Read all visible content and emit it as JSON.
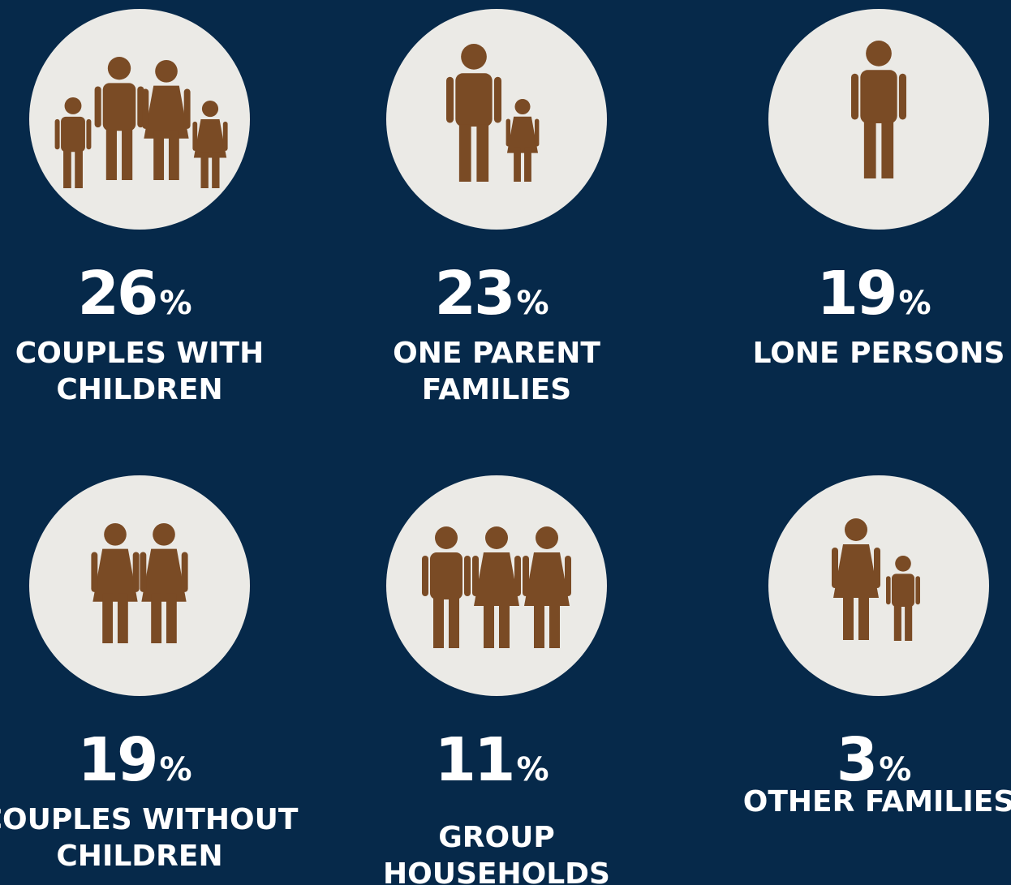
{
  "items": [
    {
      "number": "26",
      "unit": "%",
      "label": [
        "COUPLES WITH",
        "CHILDREN"
      ]
    },
    {
      "number": "23",
      "unit": "%",
      "label": [
        "ONE PARENT",
        "FAMILIES"
      ]
    },
    {
      "number": "19",
      "unit": "%",
      "label": [
        "LONE PERSONS"
      ]
    },
    {
      "number": "19",
      "unit": "%",
      "label": [
        "COUPLES WITHOUT",
        "CHILDREN"
      ]
    },
    {
      "number": "11",
      "unit": "%",
      "label": [
        "GROUP",
        "HOUSEHOLDS"
      ]
    },
    {
      "number": "3",
      "unit": "%",
      "label": [
        "OTHER FAMILIES"
      ]
    }
  ]
}
